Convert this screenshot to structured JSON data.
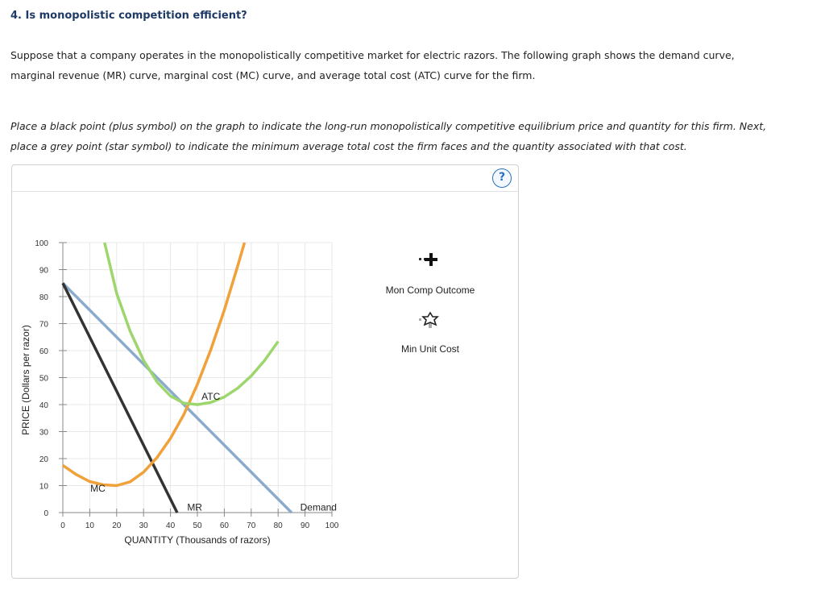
{
  "question": {
    "title": "4. Is monopolistic competition efficient?",
    "intro_line1": "Suppose that a company operates in the monopolistically competitive market for electric razors. The following graph shows the demand curve,",
    "intro_line2": "marginal revenue (MR) curve, marginal cost (MC) curve, and average total cost (ATC) curve for the firm.",
    "instruction_line1": "Place a black point (plus symbol) on the graph to indicate the long-run monopolistically competitive equilibrium price and quantity for this firm. Next,",
    "instruction_line2": "place a grey point (star symbol) to indicate the minimum average total cost the firm faces and the quantity associated with that cost."
  },
  "help_button": "?",
  "palette": {
    "mon_comp_label": "Mon Comp Outcome",
    "min_cost_label": "Min Unit Cost"
  },
  "colors": {
    "demand": "#8aabcc",
    "mr": "#333333",
    "mc": "#f0a13a",
    "atc": "#9ed66e",
    "grid": "#e8e8e8"
  },
  "chart_data": {
    "type": "line",
    "xlabel": "QUANTITY (Thousands of razors)",
    "ylabel": "PRICE (Dollars per razor)",
    "xlim": [
      0,
      100
    ],
    "ylim": [
      0,
      100
    ],
    "xticks": [
      0,
      10,
      20,
      30,
      40,
      50,
      60,
      70,
      80,
      90,
      100
    ],
    "yticks": [
      0,
      10,
      20,
      30,
      40,
      50,
      60,
      70,
      80,
      90,
      100
    ],
    "grid": true,
    "series": [
      {
        "name": "Demand",
        "points": [
          [
            0,
            85
          ],
          [
            85,
            0
          ]
        ]
      },
      {
        "name": "MR",
        "points": [
          [
            0,
            85
          ],
          [
            42.5,
            0
          ]
        ]
      },
      {
        "name": "MC",
        "points": [
          [
            0,
            17.5
          ],
          [
            5,
            14.1
          ],
          [
            10,
            11.5
          ],
          [
            15,
            10.3
          ],
          [
            20,
            10
          ],
          [
            25,
            11.4
          ],
          [
            30,
            15
          ],
          [
            35,
            20.4
          ],
          [
            40,
            27.5
          ],
          [
            45,
            36.4
          ],
          [
            50,
            47.5
          ],
          [
            55,
            60.4
          ],
          [
            60,
            75
          ],
          [
            65,
            91.4
          ],
          [
            67.5,
            100
          ]
        ]
      },
      {
        "name": "ATC",
        "points": [
          [
            15.5,
            100
          ],
          [
            20,
            81.2
          ],
          [
            25,
            67.2
          ],
          [
            30,
            56.4
          ],
          [
            35,
            48.4
          ],
          [
            40,
            43.2
          ],
          [
            45,
            40.5
          ],
          [
            50,
            40
          ],
          [
            55,
            40.8
          ],
          [
            60,
            42.8
          ],
          [
            65,
            46.1
          ],
          [
            70,
            50.6
          ],
          [
            75,
            56.4
          ],
          [
            80,
            63.4
          ]
        ]
      }
    ],
    "curve_labels": [
      {
        "text": "ATC",
        "x": 55,
        "y": 43
      },
      {
        "text": "MC",
        "x": 13,
        "y": 9
      },
      {
        "text": "MR",
        "x": 49,
        "y": 2
      },
      {
        "text": "Demand",
        "x": 95,
        "y": 2
      }
    ]
  }
}
